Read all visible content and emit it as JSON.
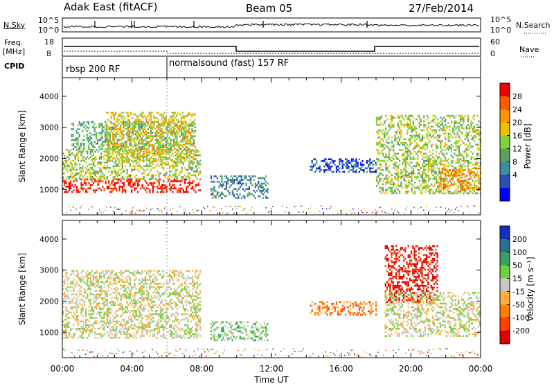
{
  "header": {
    "station": "Adak East (fitACF)",
    "beam": "Beam 05",
    "date": "27/Feb/2014"
  },
  "top_panels": {
    "nsky_label": "N.Sky",
    "nsky_ticks": [
      "10^5",
      "10^0"
    ],
    "nsearch_label": "N.Search",
    "nsearch_ticks": [
      "10^5",
      "10^0"
    ],
    "freq_label_line1": "Freq.",
    "freq_label_line2": "[MHz]",
    "freq_ticks": [
      "18",
      "8"
    ],
    "nave_label": "Nave",
    "nave_ticks": [
      "60",
      "0"
    ],
    "cpid_label": "CPID",
    "cpid_segments": [
      {
        "label": "rbsp 200 RF",
        "start_hour": 0,
        "end_hour": 6
      },
      {
        "label": "normalsound (fast) 157 RF",
        "start_hour": 6,
        "end_hour": 24
      }
    ]
  },
  "chart_data": [
    {
      "type": "heatmap",
      "parameter": "power",
      "xlabel": "",
      "ylabel": "Slant Range [km]",
      "xlim": [
        0,
        24
      ],
      "ylim": [
        180,
        4600
      ],
      "yticks": [
        1000,
        2000,
        3000,
        4000
      ],
      "colorbar": {
        "label": "Power [dB]",
        "ticks": [
          "28",
          "24",
          "20",
          "16",
          "12",
          "8",
          "4"
        ],
        "colors": [
          "#0000ff",
          "#2d4fb0",
          "#3c8fa0",
          "#5aa060",
          "#7fd23c",
          "#f0c000",
          "#ff9600",
          "#ff5a00",
          "#f00000"
        ]
      },
      "echo_regions": [
        {
          "x": [
            0.0,
            7.9
          ],
          "y": [
            900,
            1350
          ],
          "level": 8
        },
        {
          "x": [
            0.0,
            7.9
          ],
          "y": [
            1350,
            2300
          ],
          "level": 4
        },
        {
          "x": [
            0.5,
            7.6
          ],
          "y": [
            2300,
            3200
          ],
          "level": 3
        },
        {
          "x": [
            2.5,
            7.6
          ],
          "y": [
            1900,
            3500
          ],
          "level": 5
        },
        {
          "x": [
            8.5,
            11.8
          ],
          "y": [
            750,
            1450
          ],
          "level": 2
        },
        {
          "x": [
            14.2,
            18.0
          ],
          "y": [
            1550,
            2000
          ],
          "level": 1
        },
        {
          "x": [
            18.0,
            24.0
          ],
          "y": [
            900,
            3400
          ],
          "level": 4
        },
        {
          "x": [
            21.5,
            24.0
          ],
          "y": [
            1000,
            1700
          ],
          "level": 6
        }
      ]
    },
    {
      "type": "heatmap",
      "parameter": "velocity",
      "xlabel": "Time UT",
      "ylabel": "Slant Range [km]",
      "xlim": [
        0,
        24
      ],
      "ylim": [
        180,
        4600
      ],
      "xticks": [
        "00:00",
        "04:00",
        "08:00",
        "12:00",
        "16:00",
        "20:00",
        "00:00"
      ],
      "yticks": [
        1000,
        2000,
        3000,
        4000
      ],
      "colorbar": {
        "label": "Velocity [m s⁻¹]",
        "ticks": [
          "200",
          "100",
          "50",
          "15",
          "-15",
          "-50",
          "-100",
          "-200"
        ],
        "colors": [
          "#e00000",
          "#ff4000",
          "#ff8000",
          "#ffb040",
          "#c8c8c8",
          "#70d040",
          "#3aa060",
          "#2a7090",
          "#1530c0"
        ]
      },
      "echo_regions": [
        {
          "x": [
            0.0,
            7.9
          ],
          "y": [
            850,
            3000
          ],
          "level": 4
        },
        {
          "x": [
            8.5,
            11.8
          ],
          "y": [
            750,
            1350
          ],
          "level": 5
        },
        {
          "x": [
            14.2,
            18.0
          ],
          "y": [
            1550,
            2000
          ],
          "level": 2
        },
        {
          "x": [
            18.5,
            21.5
          ],
          "y": [
            2000,
            3800
          ],
          "level": 0
        },
        {
          "x": [
            18.5,
            24.0
          ],
          "y": [
            900,
            2300
          ],
          "level": 4
        }
      ]
    }
  ]
}
